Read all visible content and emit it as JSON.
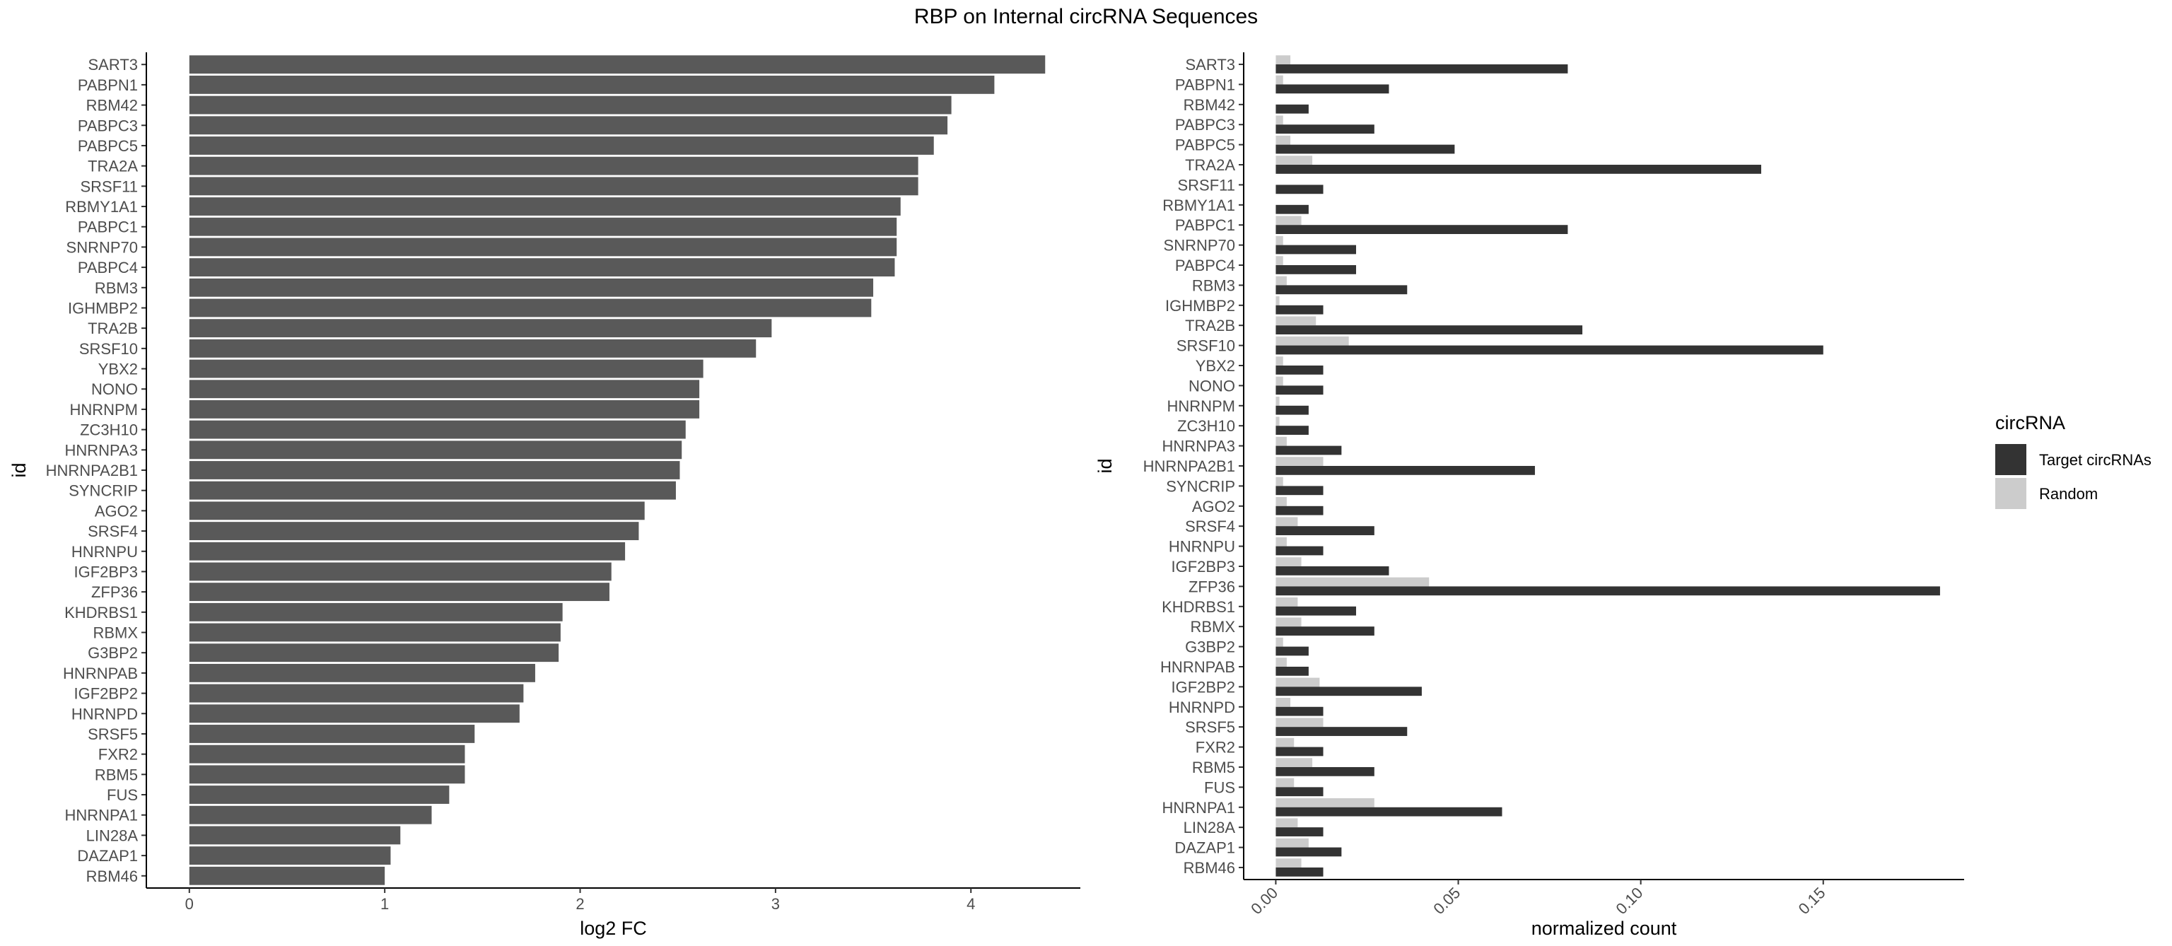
{
  "title": "RBP on Internal circRNA Sequences",
  "chart_data": [
    {
      "type": "bar",
      "orientation": "horizontal",
      "xlabel": "log2 FC",
      "ylabel": "id",
      "xlim": [
        -0.22,
        4.56
      ],
      "xticks": [
        0,
        1,
        2,
        3,
        4
      ],
      "xtick_labels": [
        "0",
        "1",
        "2",
        "3",
        "4"
      ],
      "grid": false,
      "bar_color": "#595959",
      "categories": [
        "SART3",
        "PABPN1",
        "RBM42",
        "PABPC3",
        "PABPC5",
        "TRA2A",
        "SRSF11",
        "RBMY1A1",
        "PABPC1",
        "SNRNP70",
        "PABPC4",
        "RBM3",
        "IGHMBP2",
        "TRA2B",
        "SRSF10",
        "YBX2",
        "NONO",
        "HNRNPM",
        "ZC3H10",
        "HNRNPA3",
        "HNRNPA2B1",
        "SYNCRIP",
        "AGO2",
        "SRSF4",
        "HNRNPU",
        "IGF2BP3",
        "ZFP36",
        "KHDRBS1",
        "RBMX",
        "G3BP2",
        "HNRNPAB",
        "IGF2BP2",
        "HNRNPD",
        "SRSF5",
        "FXR2",
        "RBM5",
        "FUS",
        "HNRNPA1",
        "LIN28A",
        "DAZAP1",
        "RBM46"
      ],
      "values": [
        4.38,
        4.12,
        3.9,
        3.88,
        3.81,
        3.73,
        3.73,
        3.64,
        3.62,
        3.62,
        3.61,
        3.5,
        3.49,
        2.98,
        2.9,
        2.63,
        2.61,
        2.61,
        2.54,
        2.52,
        2.51,
        2.49,
        2.33,
        2.3,
        2.23,
        2.16,
        2.15,
        1.91,
        1.9,
        1.89,
        1.77,
        1.71,
        1.69,
        1.46,
        1.41,
        1.41,
        1.33,
        1.24,
        1.08,
        1.03,
        1.0
      ]
    },
    {
      "type": "bar",
      "orientation": "horizontal",
      "grouped": true,
      "xlabel": "normalized count",
      "ylabel": "id",
      "xlim": [
        -0.0088,
        0.1886
      ],
      "xticks": [
        0.0,
        0.05,
        0.1,
        0.15
      ],
      "xtick_labels": [
        "0.00",
        "0.05",
        "0.10",
        "0.15"
      ],
      "grid": false,
      "legend": {
        "title": "circRNA",
        "position": "right"
      },
      "categories": [
        "SART3",
        "PABPN1",
        "RBM42",
        "PABPC3",
        "PABPC5",
        "TRA2A",
        "SRSF11",
        "RBMY1A1",
        "PABPC1",
        "SNRNP70",
        "PABPC4",
        "RBM3",
        "IGHMBP2",
        "TRA2B",
        "SRSF10",
        "YBX2",
        "NONO",
        "HNRNPM",
        "ZC3H10",
        "HNRNPA3",
        "HNRNPA2B1",
        "SYNCRIP",
        "AGO2",
        "SRSF4",
        "HNRNPU",
        "IGF2BP3",
        "ZFP36",
        "KHDRBS1",
        "RBMX",
        "G3BP2",
        "HNRNPAB",
        "IGF2BP2",
        "HNRNPD",
        "SRSF5",
        "FXR2",
        "RBM5",
        "FUS",
        "HNRNPA1",
        "LIN28A",
        "DAZAP1",
        "RBM46"
      ],
      "series": [
        {
          "name": "Target circRNAs",
          "color": "#333333",
          "values": [
            0.08,
            0.031,
            0.009,
            0.027,
            0.049,
            0.133,
            0.013,
            0.009,
            0.08,
            0.022,
            0.022,
            0.036,
            0.013,
            0.084,
            0.15,
            0.013,
            0.013,
            0.009,
            0.009,
            0.018,
            0.071,
            0.013,
            0.013,
            0.027,
            0.013,
            0.031,
            0.182,
            0.022,
            0.027,
            0.009,
            0.009,
            0.04,
            0.013,
            0.036,
            0.013,
            0.027,
            0.013,
            0.062,
            0.013,
            0.018,
            0.013
          ]
        },
        {
          "name": "Random",
          "color": "#cccccc",
          "values": [
            0.004,
            0.002,
            0.0,
            0.002,
            0.004,
            0.01,
            0.0,
            0.0,
            0.007,
            0.002,
            0.002,
            0.003,
            0.001,
            0.011,
            0.02,
            0.002,
            0.002,
            0.001,
            0.001,
            0.003,
            0.013,
            0.002,
            0.003,
            0.006,
            0.003,
            0.007,
            0.042,
            0.006,
            0.007,
            0.002,
            0.003,
            0.012,
            0.004,
            0.013,
            0.005,
            0.01,
            0.005,
            0.027,
            0.006,
            0.009,
            0.007
          ]
        }
      ]
    }
  ]
}
